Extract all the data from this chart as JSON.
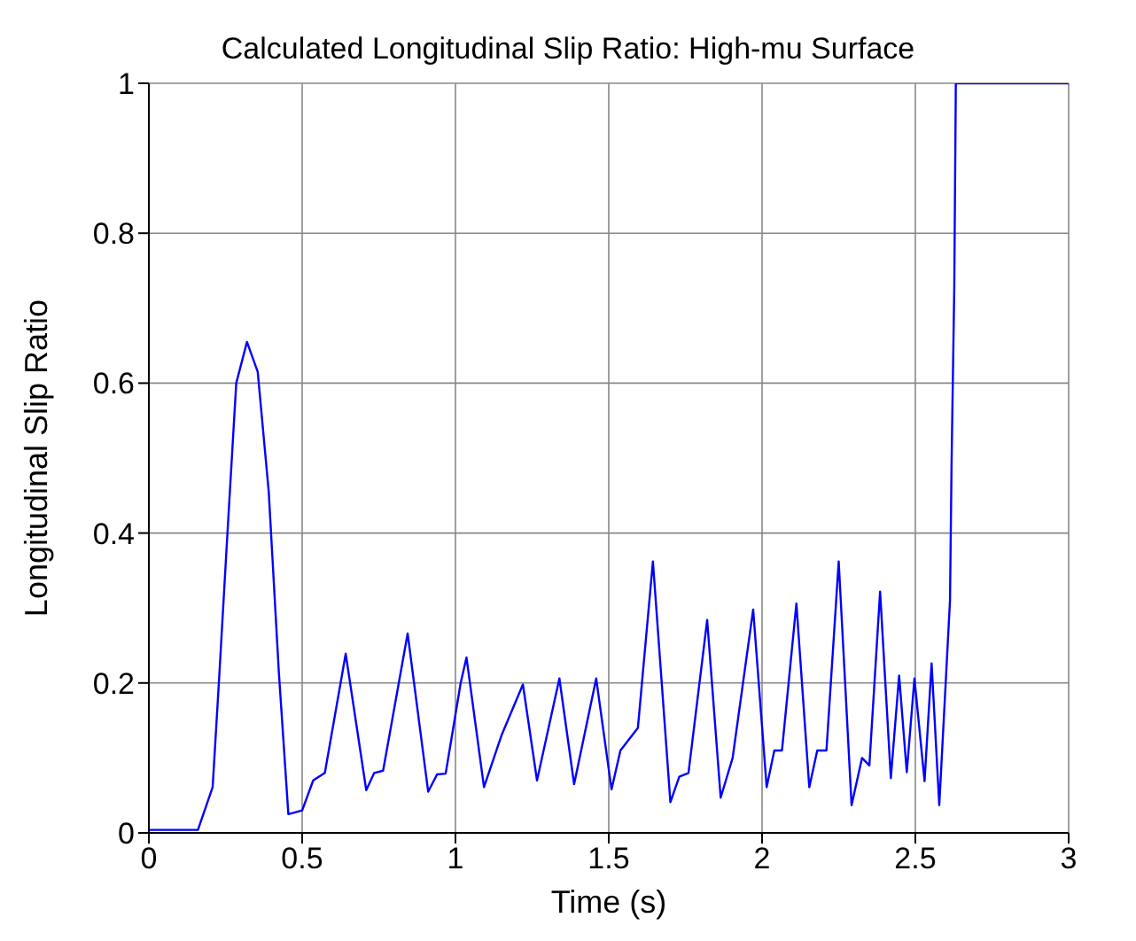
{
  "chart_data": {
    "type": "line",
    "title": "Calculated Longitudinal Slip Ratio: High-mu Surface",
    "xlabel": "Time (s)",
    "ylabel": "Longitudinal Slip Ratio",
    "xlim": [
      0,
      3
    ],
    "ylim": [
      0,
      1
    ],
    "xticks": [
      0,
      0.5,
      1,
      1.5,
      2,
      2.5,
      3
    ],
    "yticks": [
      0,
      0.2,
      0.4,
      0.6,
      0.8,
      1
    ],
    "grid": true,
    "legend": false,
    "marker": "none",
    "line_style": "solid",
    "series": [
      {
        "color": "#0000ff",
        "x": [
          0,
          0.16,
          0.208,
          0.228,
          0.256,
          0.285,
          0.32,
          0.355,
          0.391,
          0.424,
          0.455,
          0.5,
          0.536,
          0.574,
          0.642,
          0.709,
          0.735,
          0.764,
          0.844,
          0.911,
          0.94,
          0.968,
          1.017,
          1.036,
          1.093,
          1.15,
          1.22,
          1.266,
          1.339,
          1.387,
          1.459,
          1.509,
          1.538,
          1.595,
          1.644,
          1.701,
          1.73,
          1.76,
          1.821,
          1.865,
          1.904,
          1.971,
          2.015,
          2.04,
          2.065,
          2.112,
          2.154,
          2.18,
          2.21,
          2.25,
          2.292,
          2.326,
          2.35,
          2.385,
          2.42,
          2.447,
          2.472,
          2.497,
          2.53,
          2.553,
          2.578,
          2.613,
          2.618,
          2.627,
          2.632,
          3
        ],
        "values": [
          0.004,
          0.004,
          0.061,
          0.198,
          0.398,
          0.6,
          0.655,
          0.615,
          0.455,
          0.214,
          0.025,
          0.03,
          0.07,
          0.08,
          0.239,
          0.057,
          0.08,
          0.083,
          0.266,
          0.055,
          0.078,
          0.079,
          0.2,
          0.234,
          0.061,
          0.13,
          0.198,
          0.07,
          0.206,
          0.065,
          0.206,
          0.058,
          0.11,
          0.14,
          0.362,
          0.041,
          0.075,
          0.08,
          0.284,
          0.047,
          0.1,
          0.298,
          0.061,
          0.11,
          0.11,
          0.306,
          0.061,
          0.11,
          0.11,
          0.362,
          0.037,
          0.1,
          0.09,
          0.322,
          0.073,
          0.21,
          0.081,
          0.206,
          0.069,
          0.226,
          0.037,
          0.31,
          0.49,
          0.73,
          1,
          1
        ]
      }
    ]
  }
}
